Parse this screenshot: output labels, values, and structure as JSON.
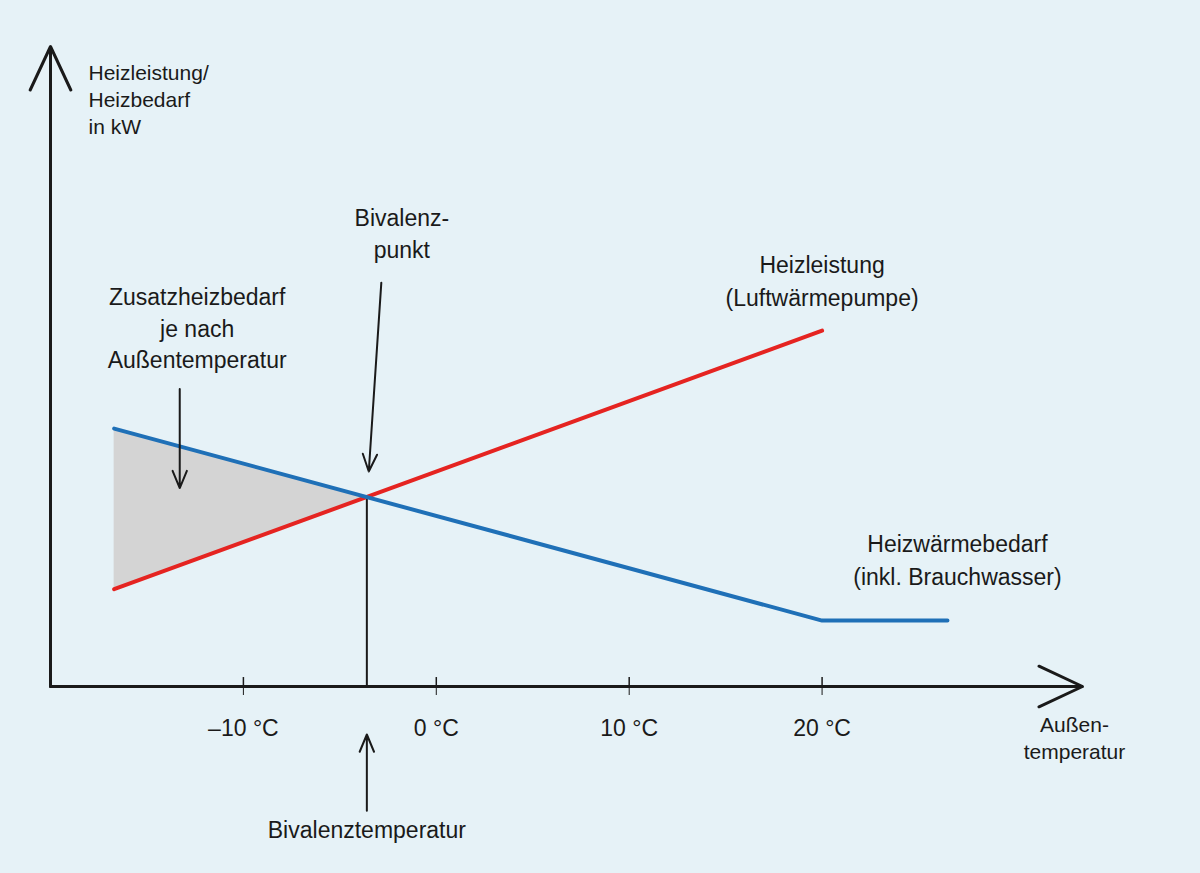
{
  "chart_data": {
    "type": "line",
    "y_label": "Heizleistung/\nHeizbedarf\nin kW",
    "x_label": "Außen-\ntemperatur",
    "xlim": [
      -20,
      33.5
    ],
    "xticks": [
      {
        "value": -10,
        "label": "–10 °C"
      },
      {
        "value": 0,
        "label": "0 °C"
      },
      {
        "value": 10,
        "label": "10 °C"
      },
      {
        "value": 20,
        "label": "20 °C"
      }
    ],
    "ylim": [
      0,
      10
    ],
    "yticks": [],
    "tick_labels": "x",
    "grid": false,
    "series": [
      {
        "name": "Heizleistung\n(Luftwärmepumpe)",
        "color": "#e52421",
        "x": [
          -16.7,
          20
        ],
        "values": [
          1.52,
          5.56
        ]
      },
      {
        "name": "Heizwärmebedarf\n(inkl. Brauchwasser)",
        "color": "#1f70b7",
        "x": [
          -16.7,
          20,
          26.5
        ],
        "values": [
          4.03,
          1.03,
          1.03
        ]
      }
    ],
    "area": {
      "label": "Zusatzheizbedarf\nje nach\nAußentemperatur",
      "color": "#d4d4d4",
      "x": [
        -16.7,
        -3.6
      ],
      "lower": [
        1.52,
        2.96
      ],
      "upper": [
        4.03,
        2.96
      ]
    },
    "bivalence_point": {
      "label": "Bivalenz-\npunkt",
      "x": -3.6,
      "y": 2.96
    },
    "bivalence_temperature": {
      "label": "Bivalenztemperatur",
      "x": -3.6
    }
  }
}
